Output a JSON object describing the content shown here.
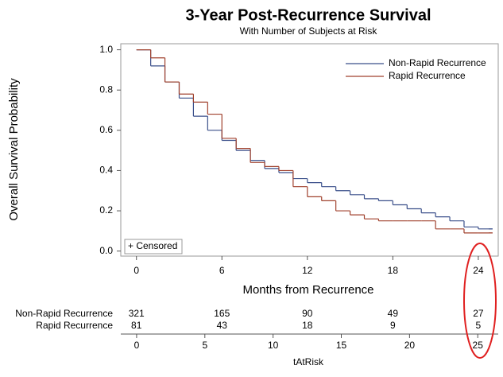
{
  "chart_data": {
    "type": "line",
    "step": true,
    "title": "3-Year Post-Recurrence Survival",
    "subtitle": "With Number of Subjects at Risk",
    "x_label": "Months from Recurrence",
    "y_label": "Overall Survival Probability",
    "x": [
      0,
      1,
      2,
      3,
      4,
      5,
      6,
      7,
      8,
      9,
      10,
      11,
      12,
      13,
      14,
      15,
      16,
      17,
      18,
      19,
      20,
      21,
      22,
      23,
      24,
      25
    ],
    "series": [
      {
        "name": "Non-Rapid Recurrence",
        "color": "#3a4f8a",
        "values": [
          1.0,
          0.92,
          0.84,
          0.76,
          0.67,
          0.6,
          0.55,
          0.5,
          0.45,
          0.41,
          0.39,
          0.36,
          0.34,
          0.32,
          0.3,
          0.28,
          0.26,
          0.25,
          0.23,
          0.21,
          0.19,
          0.17,
          0.15,
          0.12,
          0.11,
          0.11
        ]
      },
      {
        "name": "Rapid Recurrence",
        "color": "#a0412d",
        "values": [
          1.0,
          0.96,
          0.84,
          0.78,
          0.74,
          0.68,
          0.56,
          0.51,
          0.44,
          0.42,
          0.4,
          0.32,
          0.27,
          0.25,
          0.2,
          0.18,
          0.16,
          0.15,
          0.15,
          0.15,
          0.15,
          0.11,
          0.11,
          0.09,
          0.09,
          0.09
        ]
      }
    ],
    "xlim": [
      -1.1,
      25.4
    ],
    "ylim": [
      -0.025,
      1.03
    ],
    "xticks": [
      0,
      6,
      12,
      18,
      24
    ],
    "yticks": [
      {
        "value": 0,
        "label": "0.0"
      },
      {
        "value": 0.2,
        "label": "0.2"
      },
      {
        "value": 0.4,
        "label": "0.4"
      },
      {
        "value": 0.6,
        "label": "0.6"
      },
      {
        "value": 0.8,
        "label": "0.8"
      },
      {
        "value": 1,
        "label": "1.0"
      }
    ],
    "legend_position": "upper right",
    "censored_label": "+ Censored",
    "at_risk": {
      "times": [
        0,
        6,
        12,
        18,
        24
      ],
      "rows": [
        {
          "name": "Non-Rapid Recurrence",
          "color": "#3a4f8a",
          "values": [
            321,
            165,
            90,
            49,
            27
          ]
        },
        {
          "name": "Rapid Recurrence",
          "color": "#a0412d",
          "values": [
            81,
            43,
            18,
            9,
            5
          ]
        }
      ],
      "x_label": "tAtRisk",
      "xlim": [
        -1.16,
        26.5
      ],
      "xticks": [
        0,
        5,
        10,
        15,
        20,
        25
      ]
    }
  }
}
